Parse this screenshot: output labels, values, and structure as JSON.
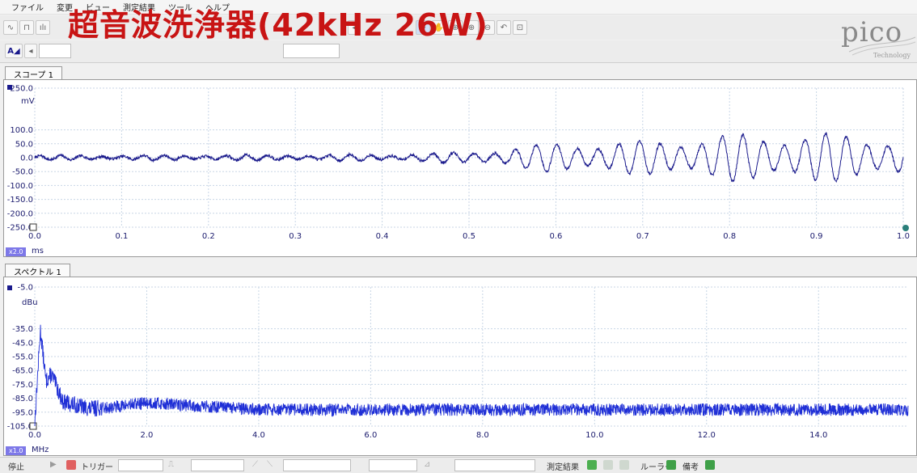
{
  "menu": [
    "ファイル",
    "変更",
    "ビュー",
    "測定結果",
    "ツール",
    "ヘルプ"
  ],
  "overlay_title": "超音波洗浄器(42kHz 26W)",
  "logo": {
    "text": "pico",
    "sub": "Technology"
  },
  "toolbar2": {
    "channel_button": "A"
  },
  "scope": {
    "tab": "スコープ 1",
    "y_unit": "mV",
    "x_unit": "ms",
    "zoom": "x2.0",
    "y_ticks": [
      "250.0",
      "100.0",
      "50.0",
      "0.0",
      "-50.0",
      "-100.0",
      "-150.0",
      "-200.0",
      "-250.0"
    ],
    "x_ticks": [
      "0.0",
      "0.1",
      "0.2",
      "0.3",
      "0.4",
      "0.5",
      "0.6",
      "0.7",
      "0.8",
      "0.9",
      "1.0"
    ]
  },
  "spectrum": {
    "tab": "スペクトル 1",
    "y_unit": "dBu",
    "x_unit": "MHz",
    "zoom": "x1.0",
    "y_ticks": [
      "-5.0",
      "-35.0",
      "-45.0",
      "-55.0",
      "-65.0",
      "-75.0",
      "-85.0",
      "-95.0",
      "-105.0"
    ],
    "x_ticks": [
      "0.0",
      "2.0",
      "4.0",
      "6.0",
      "8.0",
      "10.0",
      "12.0",
      "14.0"
    ]
  },
  "statusbar": {
    "stop": "停止",
    "trigger": "トリガー",
    "measurements": "測定結果",
    "ruler": "ルーラー",
    "notes": "備考"
  },
  "colors": {
    "trace_scope": "#1a1a8c",
    "trace_spectrum": "#1f2fd6",
    "title_red": "#c81414",
    "grid": "#c8d6e6"
  },
  "chart_data": [
    {
      "type": "line",
      "series": [
        {
          "values": "oscillating waveform"
        }
      ],
      "x": [
        0.0,
        0.1,
        0.2,
        0.3,
        0.4,
        0.5,
        0.6,
        0.7,
        0.8,
        0.9,
        1.0
      ],
      "envelope_mV": [
        8,
        8,
        10,
        10,
        12,
        20,
        55,
        60,
        85,
        90,
        75
      ],
      "xlim": [
        0.0,
        1.0
      ],
      "ylim": [
        -250,
        250
      ],
      "xlabel": "ms",
      "ylabel": "mV"
    },
    {
      "type": "line",
      "x": [
        0.0,
        0.1,
        0.2,
        0.3,
        0.5,
        1.0,
        2.0,
        4.0,
        6.0,
        8.0,
        10.0,
        12.0,
        14.0,
        15.6
      ],
      "level_dBu": [
        -105,
        -38,
        -75,
        -70,
        -90,
        -95,
        -90,
        -95,
        -95,
        -95,
        -95,
        -95,
        -95,
        -95
      ],
      "xlim": [
        0.0,
        15.6
      ],
      "ylim": [
        -105,
        -5
      ],
      "xlabel": "MHz",
      "ylabel": "dBu"
    }
  ]
}
